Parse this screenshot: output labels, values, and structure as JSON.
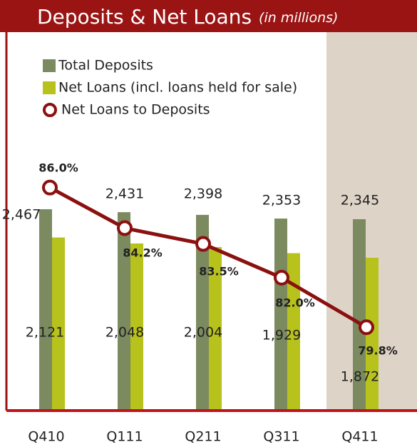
{
  "chart_data": {
    "type": "bar",
    "title": "Deposits & Net Loans",
    "subtitle": "(in millions)",
    "categories": [
      "Q410",
      "Q111",
      "Q211",
      "Q311",
      "Q411"
    ],
    "ylim": [
      0,
      4637
    ],
    "y2lim": [
      76.1,
      92.9
    ],
    "series": [
      {
        "name": "Total Deposits",
        "color": "#7c8a60",
        "values": [
          2467,
          2431,
          2398,
          2353,
          2345
        ],
        "value_labels": [
          "2,467",
          "2,431",
          "2,398",
          "2,353",
          "2,345"
        ]
      },
      {
        "name": "Net Loans (incl. loans held for sale)",
        "color": "#b8c21c",
        "values": [
          2121,
          2048,
          2004,
          1929,
          1872
        ],
        "value_labels": [
          "2,121",
          "2,048",
          "2,004",
          "1,929",
          "1,872"
        ]
      },
      {
        "name": "Net Loans to Deposits",
        "color": "#8b1010",
        "type": "line",
        "axis": "y2",
        "values": [
          86.0,
          84.2,
          83.5,
          82.0,
          79.8
        ],
        "value_labels": [
          "86.0%",
          "84.2%",
          "83.5%",
          "82.0%",
          "79.8%"
        ]
      }
    ]
  }
}
